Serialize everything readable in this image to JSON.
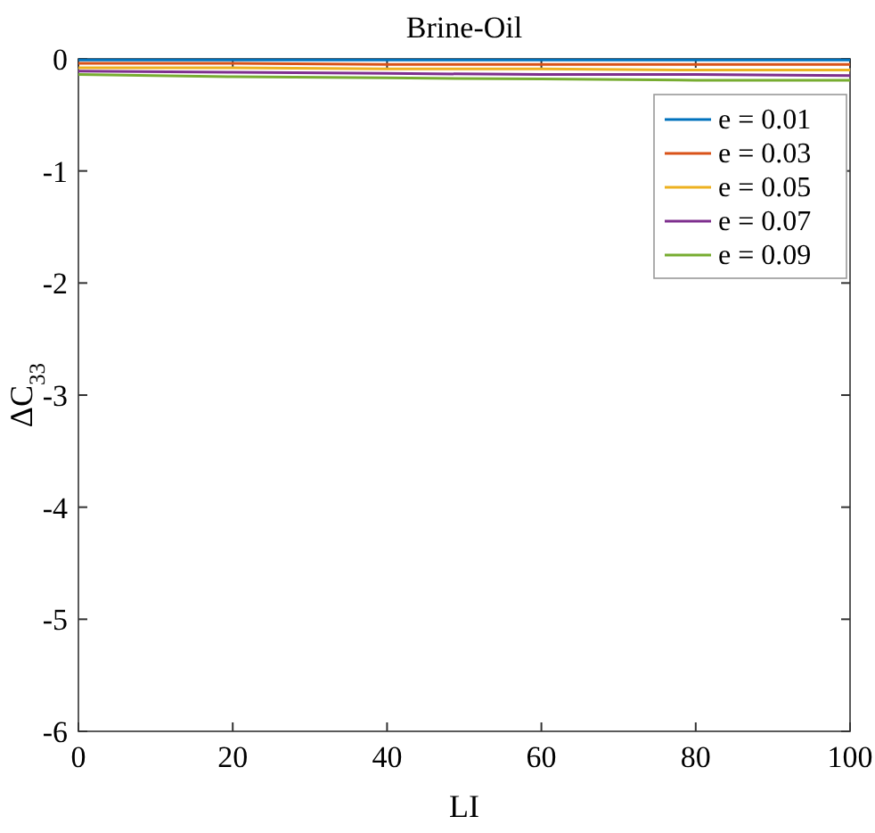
{
  "chart_data": {
    "type": "line",
    "title": "Brine-Oil",
    "xlabel": "LI",
    "ylabel": "ΔC$_{33}$",
    "x": [
      0,
      20,
      40,
      60,
      80,
      100
    ],
    "series": [
      {
        "name": "e = 0.01",
        "color": "#0072bd",
        "values": [
          -0.01,
          -0.01,
          -0.01,
          -0.01,
          -0.01,
          -0.01
        ]
      },
      {
        "name": "e = 0.03",
        "color": "#d95319",
        "values": [
          -0.04,
          -0.04,
          -0.05,
          -0.05,
          -0.05,
          -0.05
        ]
      },
      {
        "name": "e = 0.05",
        "color": "#edb120",
        "values": [
          -0.08,
          -0.08,
          -0.09,
          -0.09,
          -0.1,
          -0.1
        ]
      },
      {
        "name": "e = 0.07",
        "color": "#7e2f8e",
        "values": [
          -0.11,
          -0.12,
          -0.13,
          -0.14,
          -0.14,
          -0.15
        ]
      },
      {
        "name": "e = 0.09",
        "color": "#77ac30",
        "values": [
          -0.14,
          -0.16,
          -0.17,
          -0.18,
          -0.19,
          -0.19
        ]
      }
    ],
    "xlim": [
      0,
      100
    ],
    "xticks": [
      0,
      20,
      40,
      60,
      80,
      100
    ],
    "ylim": [
      -6,
      0
    ],
    "yticks": [
      -6,
      -5,
      -4,
      -3,
      -2,
      -1,
      0
    ],
    "grid": false,
    "legend": "top right",
    "line_style": "solid"
  }
}
